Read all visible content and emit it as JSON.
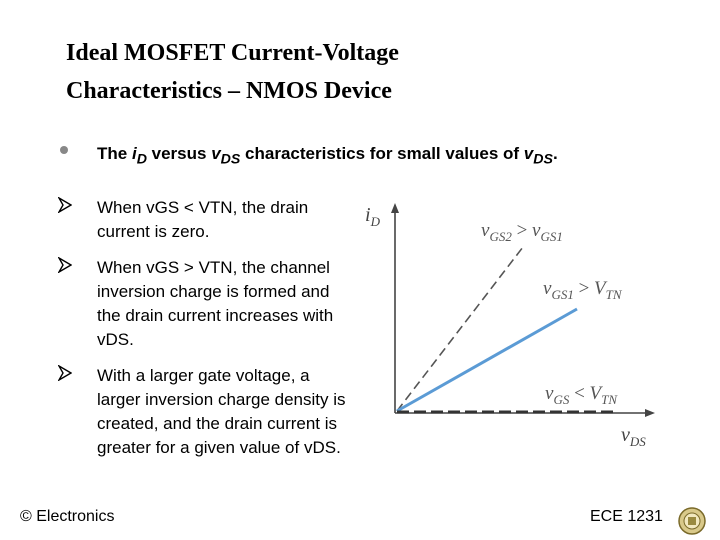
{
  "title": {
    "line1": "Ideal MOSFET Current-Voltage",
    "line2": "Characteristics – NMOS Device"
  },
  "main_bullet": {
    "pre": "The ",
    "i_sym": "i",
    "i_sub": "D",
    "mid": " versus ",
    "v_sym": "v",
    "v_sub": "DS",
    "post": " characteristics for small values of ",
    "v2_sym": "v",
    "v2_sub": "DS",
    "end": "."
  },
  "bullets": [
    {
      "text": "When vGS < VTN, the drain current is zero."
    },
    {
      "text": "When vGS > VTN, the channel inversion charge is formed and the drain current increases with vDS."
    },
    {
      "text": "With a larger gate voltage, a larger inversion charge density is created, and the drain current is greater for a given value of vDS."
    }
  ],
  "graph": {
    "y_label": "i",
    "y_label_sub": "D",
    "x_label": "v",
    "x_label_sub": "DS",
    "label_gs2": "v",
    "label_gs2_sub": "GS2",
    "label_gs2_op": " > ",
    "label_gs2_rhs": "v",
    "label_gs2_rhs_sub": "GS1",
    "label_gs1": "v",
    "label_gs1_sub": "GS1",
    "label_gs1_op": " > ",
    "label_gs1_rhs": "V",
    "label_gs1_rhs_sub": "TN",
    "label_off": "v",
    "label_off_sub": "GS",
    "label_off_op": " < ",
    "label_off_rhs": "V",
    "label_off_rhs_sub": "TN",
    "colors": {
      "axis": "#444444",
      "line_gs1": "#5b9bd5",
      "dashed": "#555555",
      "zero": "#333333"
    }
  },
  "footer": {
    "left": "© Electronics",
    "right": "ECE 1231"
  },
  "icons": {
    "bullet_main": "dot",
    "bullet_sub": "arrow-head",
    "logo": "university-seal-icon"
  }
}
